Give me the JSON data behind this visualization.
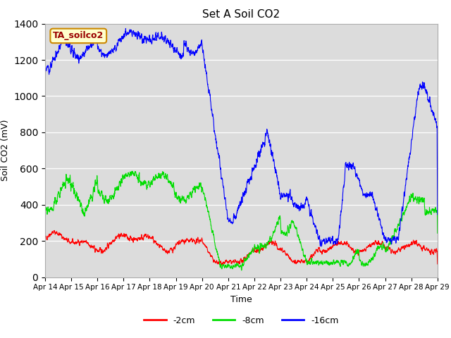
{
  "title": "Set A Soil CO2",
  "ylabel": "Soil CO2 (mV)",
  "xlabel": "Time",
  "legend_label": "TA_soilco2",
  "series": {
    "-2cm": {
      "color": "#ff0000",
      "label": "-2cm"
    },
    "-8cm": {
      "color": "#00dd00",
      "label": "-8cm"
    },
    "-16cm": {
      "color": "#0000ff",
      "label": "-16cm"
    }
  },
  "xlim": [
    0,
    15
  ],
  "ylim": [
    0,
    1400
  ],
  "yticks": [
    0,
    200,
    400,
    600,
    800,
    1000,
    1200,
    1400
  ],
  "xtick_labels": [
    "Apr 14",
    "Apr 15",
    "Apr 16",
    "Apr 17",
    "Apr 18",
    "Apr 19",
    "Apr 20",
    "Apr 21",
    "Apr 22",
    "Apr 23",
    "Apr 24",
    "Apr 25",
    "Apr 26",
    "Apr 27",
    "Apr 28",
    "Apr 29"
  ],
  "plot_bg_color": "#dcdcdc",
  "grid_color": "#ffffff",
  "annotation_box_color": "#ffffcc",
  "annotation_box_edge": "#cc8800",
  "annotation_text_color": "#990000"
}
